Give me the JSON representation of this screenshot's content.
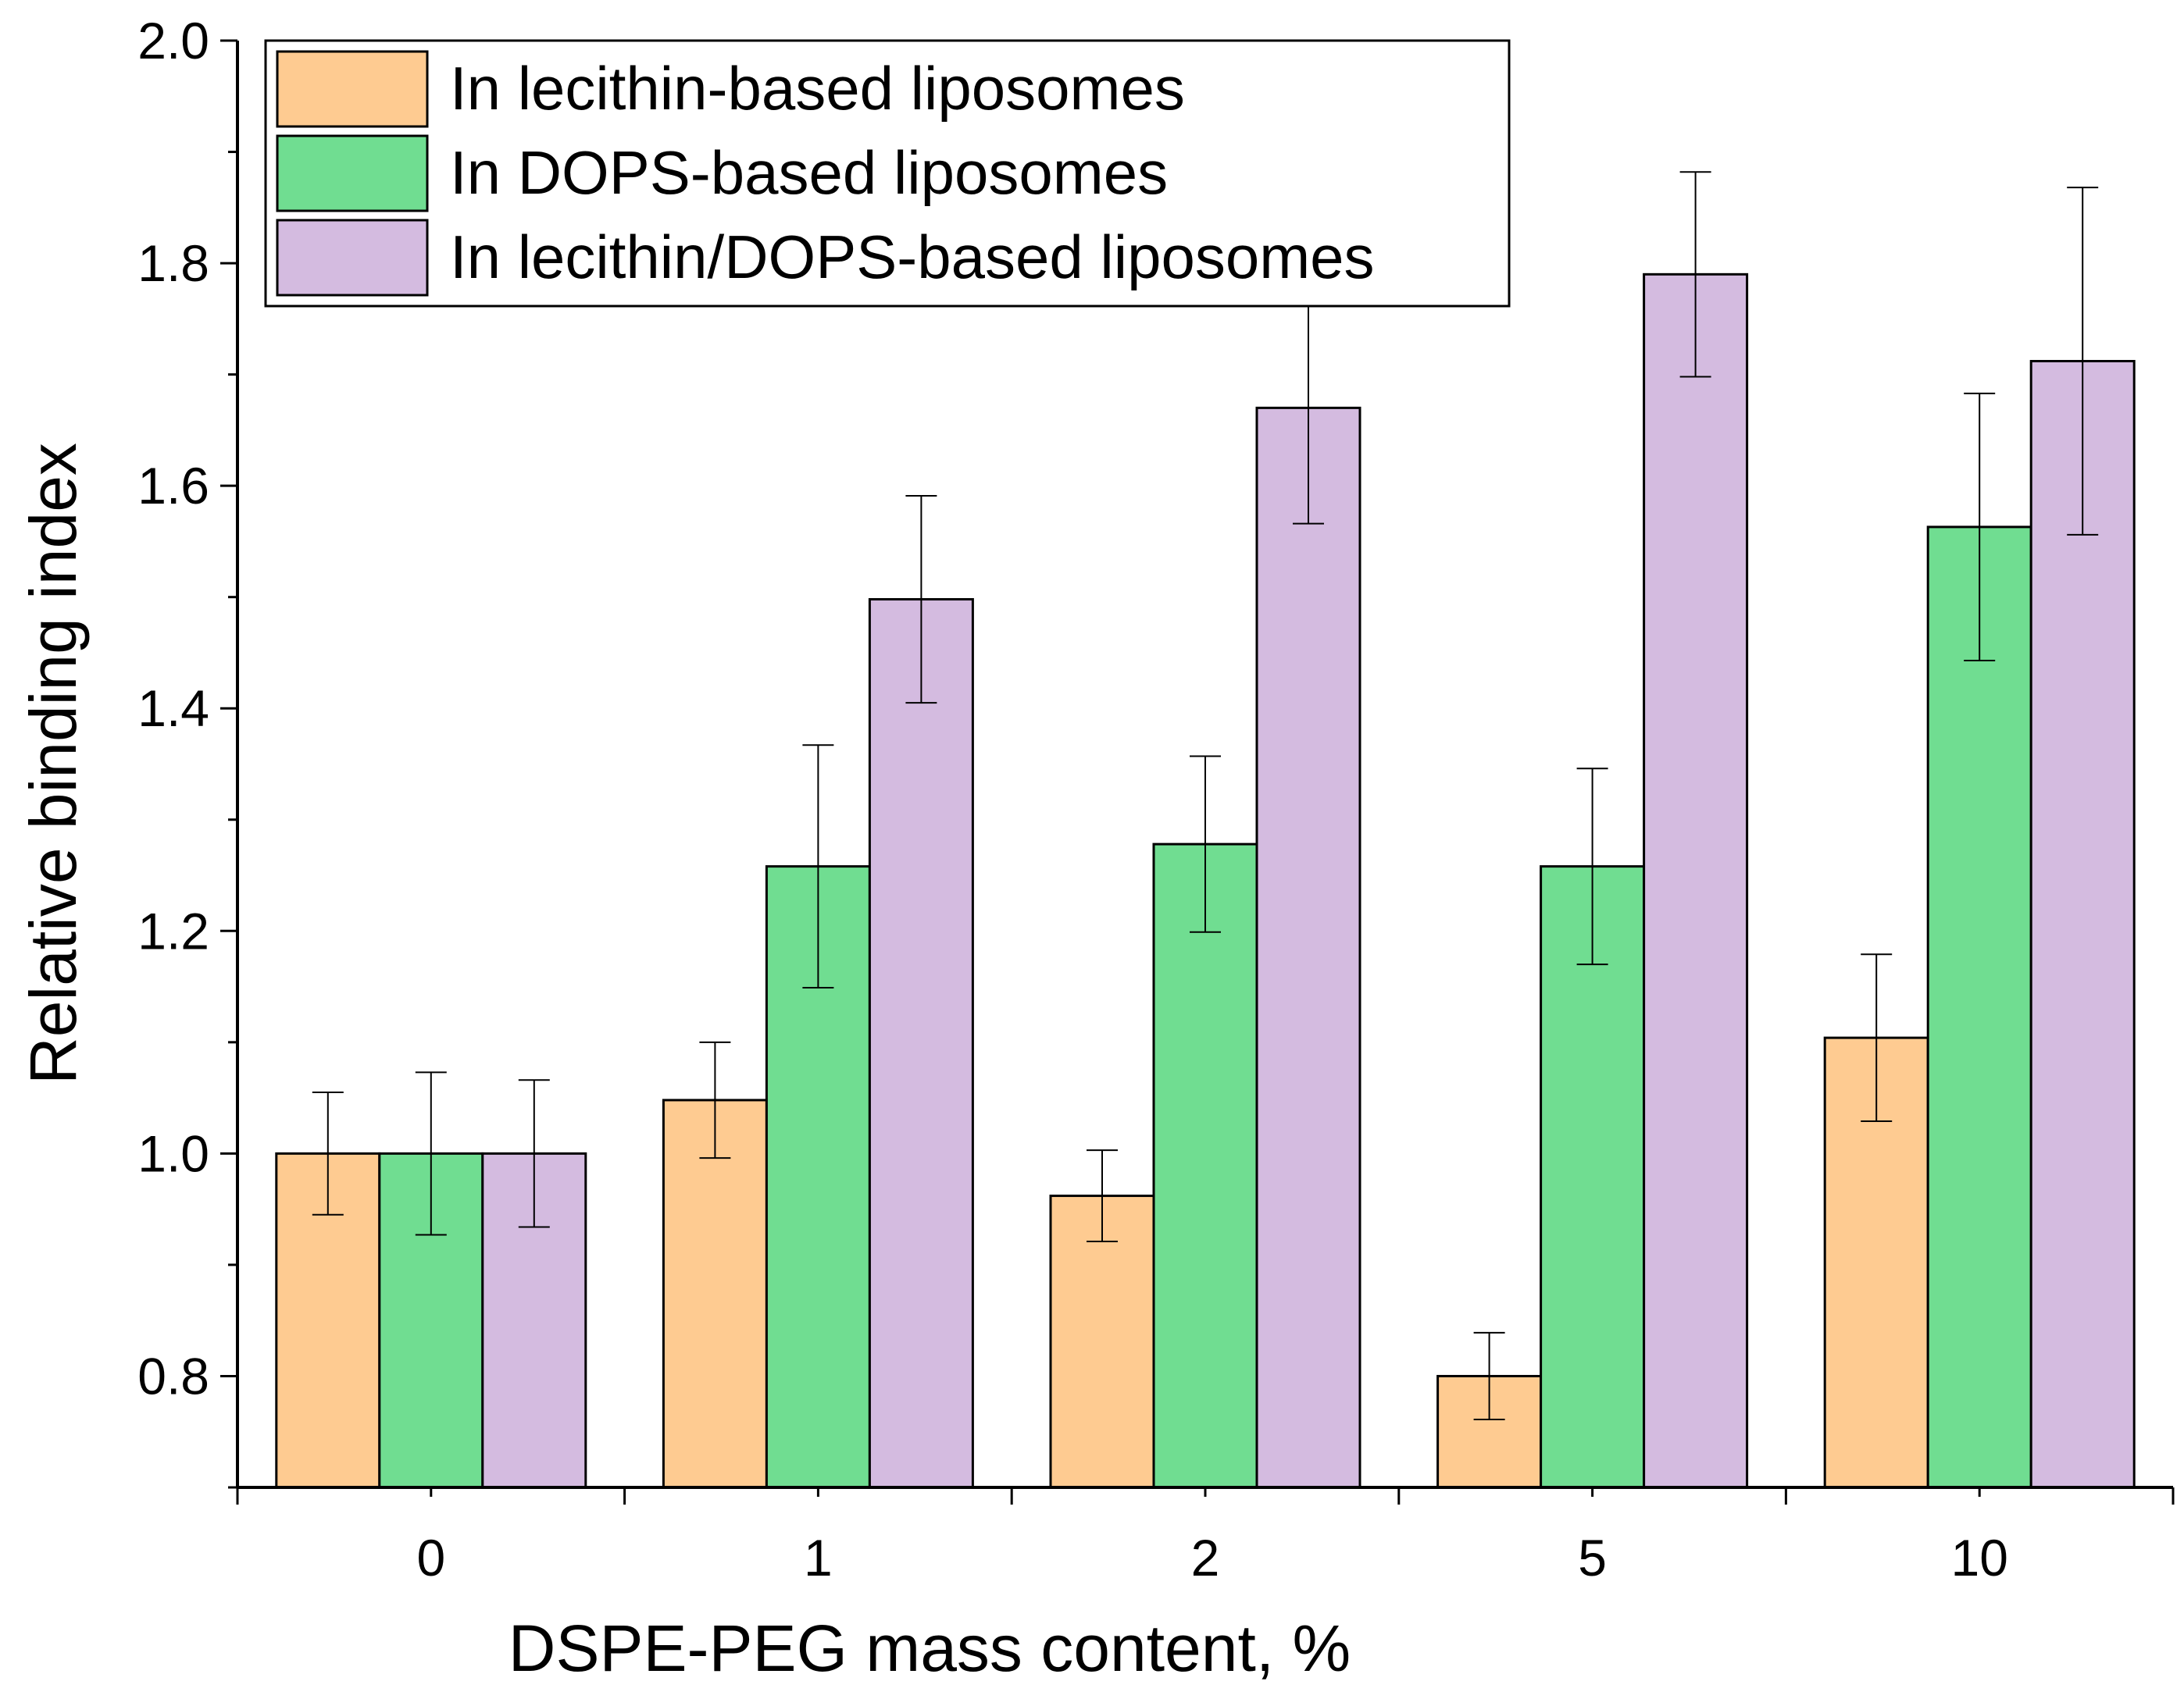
{
  "chart_data": {
    "type": "bar",
    "xlabel": "DSPE-PEG mass content, %",
    "ylabel": "Relative binding index",
    "categories": [
      "0",
      "1",
      "2",
      "5",
      "10"
    ],
    "ylim": [
      0.7,
      2.0
    ],
    "yticks": [
      "0.8",
      "1.0",
      "1.2",
      "1.4",
      "1.6",
      "1.8",
      "2.0"
    ],
    "series": [
      {
        "name": "In lecithin-based liposomes",
        "color": "#fecb91",
        "values": [
          1.0,
          1.048,
          0.962,
          0.8,
          1.104
        ],
        "errors": [
          0.055,
          0.052,
          0.041,
          0.039,
          0.075
        ]
      },
      {
        "name": "In DOPS-based liposomes",
        "color": "#70dd91",
        "values": [
          1.0,
          1.258,
          1.278,
          1.258,
          1.563
        ],
        "errors": [
          0.073,
          0.109,
          0.079,
          0.088,
          0.12
        ]
      },
      {
        "name": "In lecithin/DOPS-based liposomes",
        "color": "#d4bbe0",
        "values": [
          1.0,
          1.498,
          1.67,
          1.79,
          1.712
        ],
        "errors": [
          0.066,
          0.093,
          0.104,
          0.092,
          0.156
        ]
      }
    ],
    "legend_position": "top-left",
    "grid": false
  }
}
